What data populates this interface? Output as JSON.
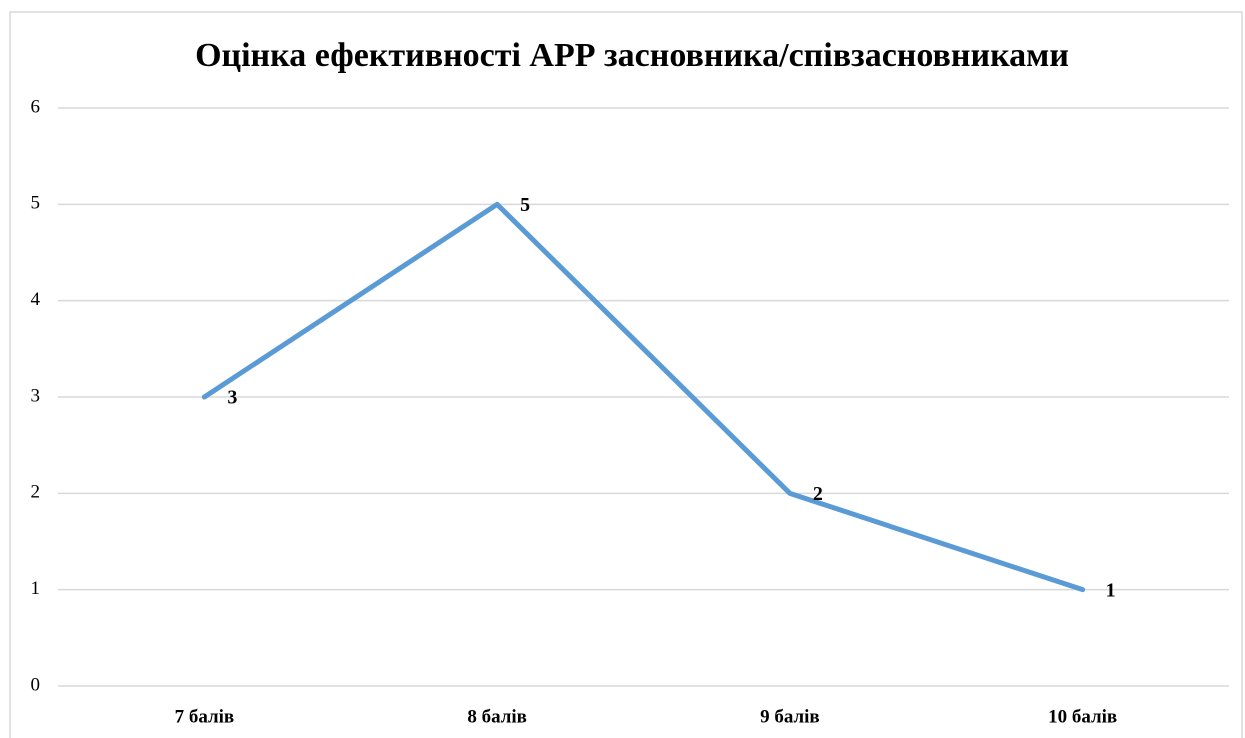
{
  "chart_data": {
    "type": "line",
    "title": "Оцінка ефективності АРР засновника/співзасновниками",
    "categories": [
      "7 балів",
      "8 балів",
      "9 балів",
      "10 балів"
    ],
    "values": [
      3,
      5,
      2,
      1
    ],
    "color": "#5b9bd5",
    "ylim": [
      0,
      6
    ],
    "yticks": [
      0,
      1,
      2,
      3,
      4,
      5,
      6
    ],
    "grid": true
  }
}
